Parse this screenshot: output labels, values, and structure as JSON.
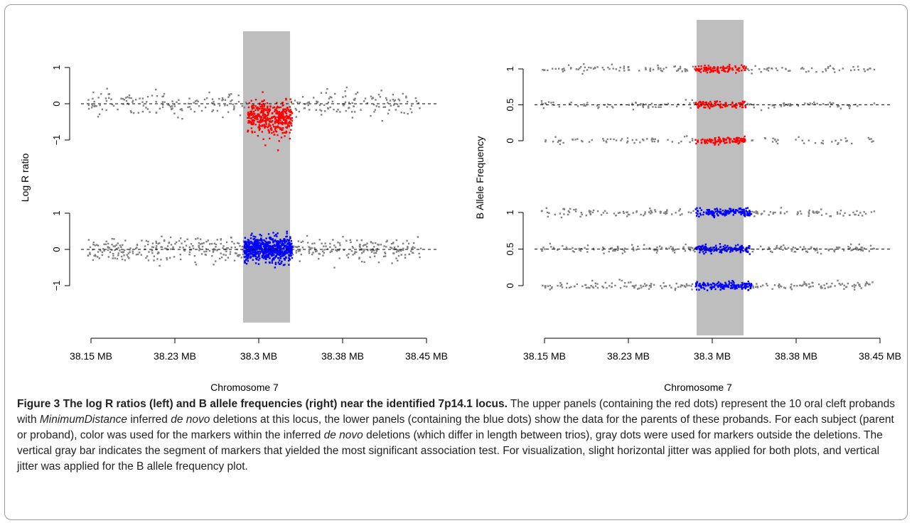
{
  "figure_label": "Figure 3",
  "caption": {
    "title": "The log R ratios (left) and B allele frequencies (right) near the identified 7p14.1 locus.",
    "t1": " The upper panels (containing the red dots) represent the 10 oral cleft probands with ",
    "i1": "MinimumDistance",
    "t2": " inferred ",
    "i2": "de novo",
    "t3": " deletions at this locus, the lower panels (containing the blue dots) show the data for the parents of these probands. For each subject (parent or proband), color was used for the markers within the inferred ",
    "i3": "de novo",
    "t4": " deletions (which differ in length between trios), gray dots were used for markers outside the deletions. The vertical gray bar indicates the segment of markers that yielded the most significant association test. For visualization, slight horizontal jitter was applied for both plots, and vertical jitter was applied for the B allele frequency plot."
  },
  "colors": {
    "highlight_band": "#bebebe",
    "outside_points": "#808080",
    "proband_points": "#ff0000",
    "parent_points": "#0000ff"
  },
  "chart_data": [
    {
      "type": "scatter",
      "ylabel": "Log R ratio",
      "xlabel": "Chromosome 7",
      "x_ticks": [
        "38.15 MB",
        "38.23 MB",
        "38.3 MB",
        "38.38 MB",
        "38.45 MB"
      ],
      "x_tick_values": [
        38.15,
        38.225,
        38.3,
        38.375,
        38.45
      ],
      "xlim": [
        38.145,
        38.455
      ],
      "highlight_band": [
        38.286,
        38.328
      ],
      "panels": [
        {
          "role": "probands",
          "ylim": [
            -1.1,
            1.1
          ],
          "y_ticks": [
            "−1",
            "0",
            "1"
          ],
          "y_tick_values": [
            -1,
            0,
            1
          ],
          "reference_line": 0,
          "series": [
            {
              "color": "outside_points",
              "x_ranges": [
                [
                  38.147,
                  38.29
                ],
                [
                  38.33,
                  38.445
                ]
              ],
              "center": 0,
              "spread": 0.18,
              "count": 260
            },
            {
              "color": "proband_points",
              "x_ranges": [
                [
                  38.29,
                  38.33
                ]
              ],
              "center": -0.4,
              "spread": 0.22,
              "count": 420
            }
          ]
        },
        {
          "role": "parents",
          "ylim": [
            -1.1,
            1.1
          ],
          "y_ticks": [
            "−1",
            "0",
            "1"
          ],
          "y_tick_values": [
            -1,
            0,
            1
          ],
          "reference_line": 0,
          "series": [
            {
              "color": "outside_points",
              "x_ranges": [
                [
                  38.147,
                  38.287
                ],
                [
                  38.33,
                  38.445
                ]
              ],
              "center": 0,
              "spread": 0.16,
              "count": 420
            },
            {
              "color": "parent_points",
              "x_ranges": [
                [
                  38.287,
                  38.33
                ]
              ],
              "center": 0,
              "spread": 0.17,
              "count": 700
            }
          ]
        }
      ]
    },
    {
      "type": "scatter",
      "ylabel": "B Allele Frequency",
      "xlabel": "Chromosome 7",
      "x_ticks": [
        "38.15 MB",
        "38.23 MB",
        "38.3 MB",
        "38.38 MB",
        "38.45 MB"
      ],
      "x_tick_values": [
        38.15,
        38.225,
        38.3,
        38.375,
        38.45
      ],
      "xlim": [
        38.145,
        38.455
      ],
      "highlight_band": [
        38.286,
        38.328
      ],
      "panels": [
        {
          "role": "probands",
          "ylim": [
            -0.15,
            1.15
          ],
          "y_ticks": [
            "0",
            "0.5",
            "1"
          ],
          "y_tick_values": [
            0,
            0.5,
            1
          ],
          "reference_line": 0.5,
          "series": [
            {
              "color": "outside_points",
              "x_ranges": [
                [
                  38.147,
                  38.285
                ],
                [
                  38.33,
                  38.445
                ]
              ],
              "levels": [
                0,
                0.5,
                1
              ],
              "spread": 0.025,
              "count": 330
            },
            {
              "color": "proband_points",
              "x_ranges": [
                [
                  38.285,
                  38.33
                ]
              ],
              "levels": [
                0,
                0.5,
                1
              ],
              "spread": 0.025,
              "count": 330
            }
          ]
        },
        {
          "role": "parents",
          "ylim": [
            -0.15,
            1.15
          ],
          "y_ticks": [
            "0",
            "0.5",
            "1"
          ],
          "y_tick_values": [
            0,
            0.5,
            1
          ],
          "reference_line": 0.5,
          "series": [
            {
              "color": "outside_points",
              "x_ranges": [
                [
                  38.147,
                  38.285
                ],
                [
                  38.335,
                  38.445
                ]
              ],
              "levels": [
                0,
                0.5,
                1
              ],
              "spread": 0.025,
              "count": 480
            },
            {
              "color": "parent_points",
              "x_ranges": [
                [
                  38.285,
                  38.335
                ]
              ],
              "levels": [
                0,
                0.5,
                1
              ],
              "spread": 0.025,
              "count": 480
            }
          ]
        }
      ]
    }
  ]
}
